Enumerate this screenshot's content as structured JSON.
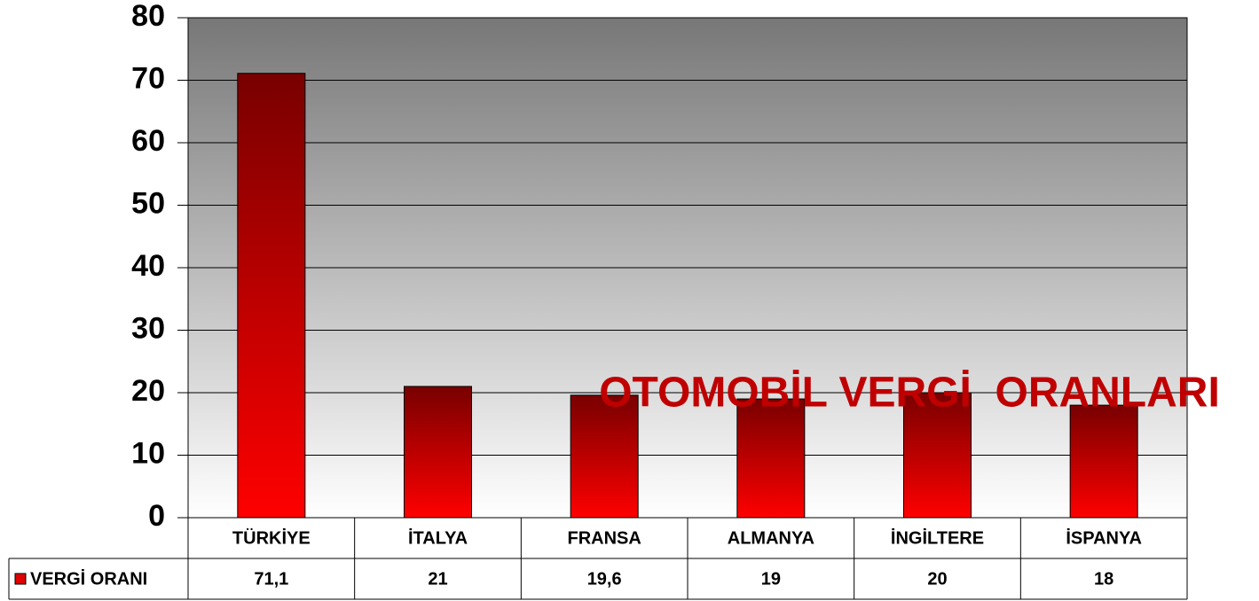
{
  "chart_data": {
    "type": "bar",
    "title": "OTOMOBİL VERGİ  ORANLARI",
    "categories": [
      "TÜRKİYE",
      "İTALYA",
      "FRANSA",
      "ALMANYA",
      "İNGİLTERE",
      "İSPANYA"
    ],
    "series": [
      {
        "name": "VERGİ ORANI",
        "color": "#e00000",
        "values": [
          71.1,
          21,
          19.6,
          19,
          20,
          18
        ],
        "value_labels": [
          "71,1",
          "21",
          "19,6",
          "19",
          "20",
          "18"
        ]
      }
    ],
    "ylim": [
      0,
      80
    ],
    "yticks": [
      0,
      10,
      20,
      30,
      40,
      50,
      60,
      70,
      80
    ],
    "grid": true
  }
}
